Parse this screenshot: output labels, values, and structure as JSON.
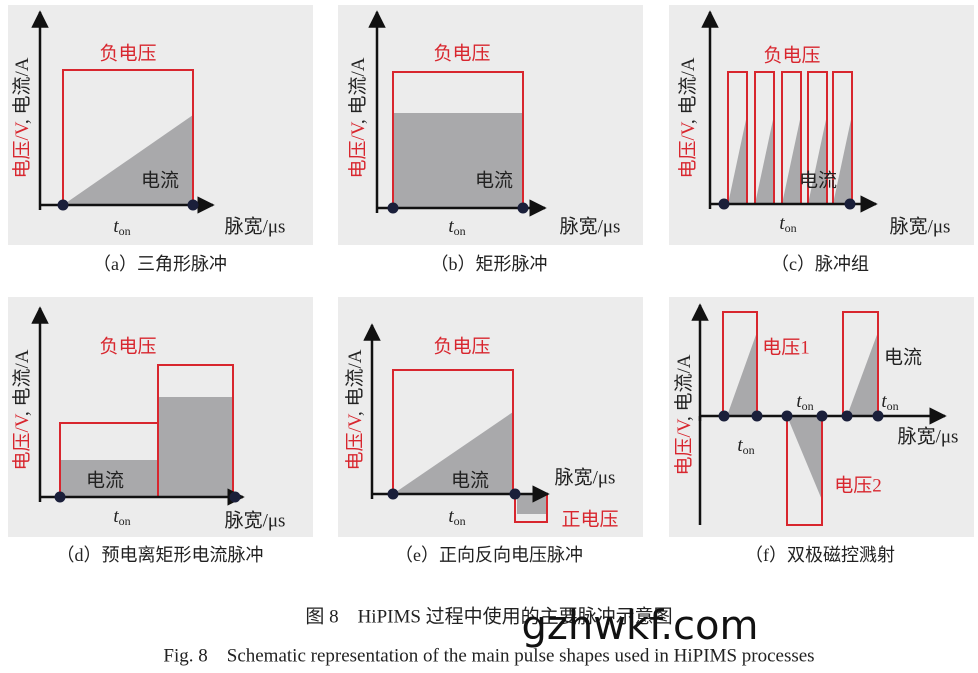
{
  "panels": [
    {
      "caption": "（a）三角形脉冲",
      "voltage_axis": "电压/V",
      "current_axis": ", 电流/A",
      "x_axis": "脉宽/μs",
      "voltage_label": "负电压",
      "current_label": "电流",
      "t_on": [
        {
          "t": "t",
          "sub": "on"
        }
      ]
    },
    {
      "caption": "（b）矩形脉冲",
      "voltage_axis": "电压/V",
      "current_axis": ", 电流/A",
      "x_axis": "脉宽/μs",
      "voltage_label": "负电压",
      "current_label": "电流",
      "t_on": [
        {
          "t": "t",
          "sub": "on"
        }
      ]
    },
    {
      "caption": "（c）脉冲组",
      "voltage_axis": "电压/V",
      "current_axis": ", 电流/A",
      "x_axis": "脉宽/μs",
      "voltage_label": "负电压",
      "current_label": "电流",
      "t_on": [
        {
          "t": "t",
          "sub": "on"
        }
      ]
    },
    {
      "caption": "（d）预电离矩形电流脉冲",
      "voltage_axis": "电压/V",
      "current_axis": ", 电流/A",
      "x_axis": "脉宽/μs",
      "voltage_label": "负电压",
      "current_label": "电流",
      "t_on": [
        {
          "t": "t",
          "sub": "on"
        }
      ]
    },
    {
      "caption": "（e）正向反向电压脉冲",
      "voltage_axis": "电压/V",
      "current_axis": ", 电流/A",
      "x_axis": "脉宽/μs",
      "voltage_label": "负电压",
      "current_label": "电流",
      "positive_voltage_label": "正电压",
      "t_on": [
        {
          "t": "t",
          "sub": "on"
        }
      ]
    },
    {
      "caption": "（f）双极磁控溅射",
      "voltage_axis": "电压/V",
      "current_axis": ", 电流/A",
      "x_axis": "脉宽/μs",
      "voltage_labels": [
        "电压1",
        "电压2"
      ],
      "current_label": "电流",
      "t_on": [
        {
          "t": "t",
          "sub": "on"
        },
        {
          "t": "t",
          "sub": "on"
        },
        {
          "t": "t",
          "sub": "on"
        }
      ]
    }
  ],
  "figure_caption": {
    "zh": "图 8　HiPIMS 过程中使用的主要脉冲示意图",
    "en": "Fig. 8　Schematic representation of the main pulse shapes used in HiPIMS processes"
  },
  "watermark": "gzhwkf.com"
}
